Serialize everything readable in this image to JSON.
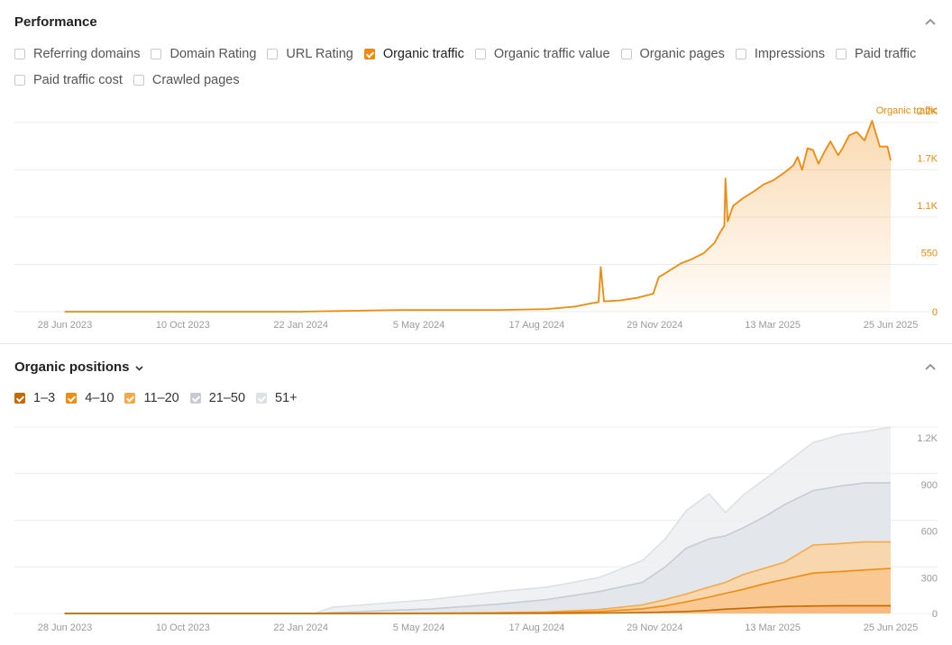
{
  "performance": {
    "title": "Performance",
    "metrics": [
      {
        "label": "Referring domains",
        "checked": false
      },
      {
        "label": "Domain Rating",
        "checked": false
      },
      {
        "label": "URL Rating",
        "checked": false
      },
      {
        "label": "Organic traffic",
        "checked": true
      },
      {
        "label": "Organic traffic value",
        "checked": false
      },
      {
        "label": "Organic pages",
        "checked": false
      },
      {
        "label": "Impressions",
        "checked": false
      },
      {
        "label": "Paid traffic",
        "checked": false
      },
      {
        "label": "Paid traffic cost",
        "checked": false
      },
      {
        "label": "Crawled pages",
        "checked": false
      }
    ]
  },
  "positions": {
    "title": "Organic positions",
    "legend": [
      {
        "label": "1–3",
        "color": "#c26a00"
      },
      {
        "label": "4–10",
        "color": "#f08c10"
      },
      {
        "label": "11–20",
        "color": "#f5a94a"
      },
      {
        "label": "21–50",
        "color": "#c7ccd3"
      },
      {
        "label": "51+",
        "color": "#dde0e5"
      }
    ]
  },
  "chart_data": [
    {
      "type": "area",
      "series_label": "Organic traffic",
      "color": "#f08a0c",
      "x_ticks": [
        "28 Jun 2023",
        "10 Oct 2023",
        "22 Jan 2024",
        "5 May 2024",
        "17 Aug 2024",
        "29 Nov 2024",
        "13 Mar 2025",
        "25 Jun 2025"
      ],
      "y_ticks": [
        "0",
        "550",
        "1.1K",
        "1.7K",
        "2.2K"
      ],
      "ylim": [
        0,
        2200
      ],
      "grid": true,
      "series": [
        {
          "name": "Organic traffic",
          "x": [
            "2023-06-01",
            "2023-08-01",
            "2023-10-01",
            "2024-01-01",
            "2024-04-01",
            "2024-07-01",
            "2024-08-15",
            "2024-09-10",
            "2024-09-25",
            "2024-10-01",
            "2024-10-03",
            "2024-10-06",
            "2024-10-20",
            "2024-11-05",
            "2024-11-20",
            "2024-11-25",
            "2024-12-05",
            "2024-12-15",
            "2024-12-25",
            "2025-01-05",
            "2025-01-15",
            "2025-01-20",
            "2025-01-24",
            "2025-01-25",
            "2025-01-27",
            "2025-02-01",
            "2025-02-10",
            "2025-02-20",
            "2025-03-01",
            "2025-03-10",
            "2025-03-20",
            "2025-03-28",
            "2025-04-01",
            "2025-04-05",
            "2025-04-10",
            "2025-04-15",
            "2025-04-20",
            "2025-04-25",
            "2025-05-01",
            "2025-05-08",
            "2025-05-12",
            "2025-05-18",
            "2025-05-25",
            "2025-06-01",
            "2025-06-08",
            "2025-06-15",
            "2025-06-22",
            "2025-06-25"
          ],
          "values": [
            0,
            0,
            0,
            0,
            20,
            20,
            30,
            60,
            100,
            110,
            520,
            120,
            130,
            160,
            210,
            400,
            480,
            560,
            610,
            680,
            800,
            920,
            1000,
            1550,
            1050,
            1230,
            1320,
            1400,
            1480,
            1530,
            1620,
            1700,
            1800,
            1650,
            1900,
            1880,
            1720,
            1850,
            1980,
            1820,
            1900,
            2050,
            2090,
            1990,
            2220,
            1920,
            1920,
            1760
          ]
        }
      ]
    },
    {
      "type": "area",
      "x_ticks": [
        "28 Jun 2023",
        "10 Oct 2023",
        "22 Jan 2024",
        "5 May 2024",
        "17 Aug 2024",
        "29 Nov 2024",
        "13 Mar 2025",
        "25 Jun 2025"
      ],
      "y_ticks": [
        "0",
        "300",
        "600",
        "900",
        "1.2K"
      ],
      "ylim": [
        0,
        1200
      ],
      "grid": true,
      "x": [
        "2023-06-01",
        "2023-10-01",
        "2024-01-15",
        "2024-02-01",
        "2024-05-01",
        "2024-07-01",
        "2024-08-15",
        "2024-10-01",
        "2024-11-10",
        "2024-12-01",
        "2024-12-20",
        "2025-01-10",
        "2025-01-25",
        "2025-02-10",
        "2025-03-01",
        "2025-03-20",
        "2025-04-15",
        "2025-05-10",
        "2025-06-01",
        "2025-06-25"
      ],
      "series": [
        {
          "name": "51+",
          "color": "#dde0e5",
          "values": [
            0,
            0,
            0,
            40,
            90,
            140,
            170,
            230,
            340,
            480,
            660,
            770,
            650,
            760,
            860,
            960,
            1100,
            1150,
            1170,
            1200
          ]
        },
        {
          "name": "21–50",
          "color": "#c7ccd3",
          "values": [
            0,
            0,
            0,
            5,
            30,
            60,
            90,
            140,
            200,
            300,
            420,
            480,
            500,
            550,
            620,
            700,
            790,
            820,
            840,
            840
          ]
        },
        {
          "name": "11–20",
          "color": "#f5a94a",
          "values": [
            0,
            0,
            0,
            0,
            2,
            5,
            10,
            25,
            55,
            90,
            125,
            170,
            200,
            250,
            290,
            330,
            440,
            450,
            460,
            460
          ]
        },
        {
          "name": "4–10",
          "color": "#f08c10",
          "values": [
            0,
            0,
            0,
            0,
            1,
            3,
            5,
            12,
            30,
            50,
            75,
            105,
            130,
            155,
            190,
            220,
            260,
            270,
            280,
            290
          ]
        },
        {
          "name": "1–3",
          "color": "#c26a00",
          "values": [
            0,
            0,
            0,
            0,
            0,
            0,
            1,
            3,
            6,
            9,
            13,
            20,
            28,
            33,
            40,
            45,
            48,
            50,
            50,
            50
          ]
        }
      ]
    }
  ]
}
